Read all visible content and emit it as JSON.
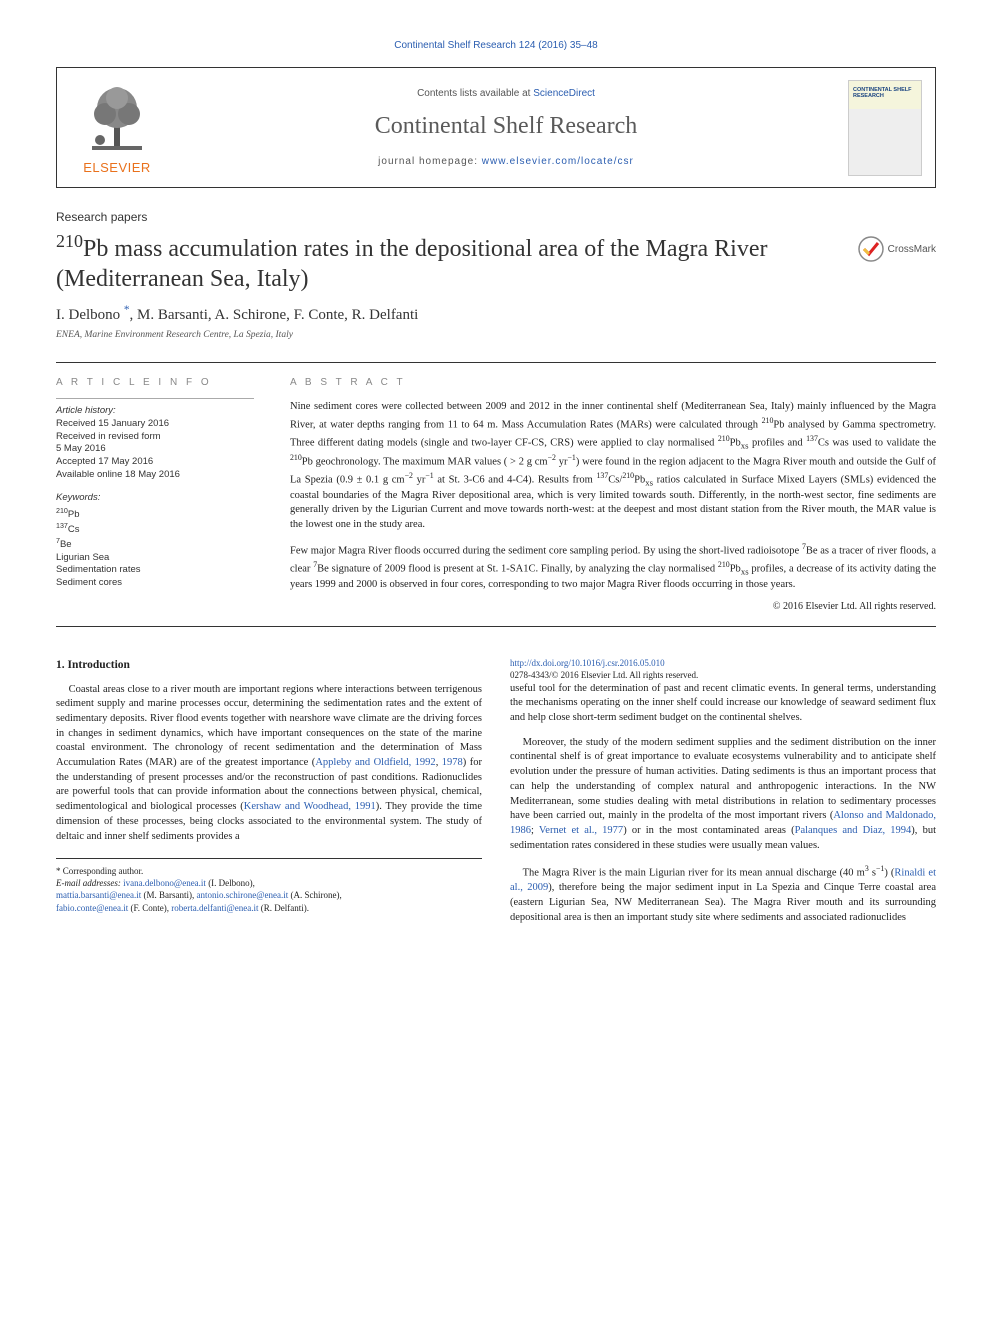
{
  "top_citation": "Continental Shelf Research 124 (2016) 35–48",
  "header": {
    "contents_pre": "Contents lists available at ",
    "contents_link": "ScienceDirect",
    "journal_title": "Continental Shelf Research",
    "homepage_pre": "journal homepage: ",
    "homepage_link": "www.elsevier.com/locate/csr",
    "elsevier": "ELSEVIER",
    "cover_title": "CONTINENTAL SHELF RESEARCH"
  },
  "crossmark_label": "CrossMark",
  "section_label": "Research papers",
  "article_title_html": "<sup>210</sup>Pb mass accumulation rates in the depositional area of the Magra River (Mediterranean Sea, Italy)",
  "authors_html": "I. Delbono <sup class=\"corr-mark\">*</sup>, M. Barsanti, A. Schirone, F. Conte, R. Delfanti",
  "affiliation": "ENEA, Marine Environment Research Centre, La Spezia, Italy",
  "article_info": {
    "head": "A R T I C L E  I N F O",
    "history_head": "Article history:",
    "history": [
      "Received 15 January 2016",
      "Received in revised form",
      "5 May 2016",
      "Accepted 17 May 2016",
      "Available online 18 May 2016"
    ],
    "kw_head": "Keywords:",
    "keywords_html": [
      "<sup>210</sup>Pb",
      "<sup>137</sup>Cs",
      "<sup>7</sup>Be",
      "Ligurian Sea",
      "Sedimentation rates",
      "Sediment cores"
    ]
  },
  "abstract": {
    "head": "A B S T R A C T",
    "p1_html": "Nine sediment cores were collected between 2009 and 2012 in the inner continental shelf (Mediterranean Sea, Italy) mainly influenced by the Magra River, at water depths ranging from 11 to 64 m. Mass Accumulation Rates (MARs) were calculated through <sup>210</sup>Pb analysed by Gamma spectrometry. Three different dating models (single and two-layer CF-CS, CRS) were applied to clay normalised <sup>210</sup>Pb<sub>xs</sub> profiles and <sup>137</sup>Cs was used to validate the <sup>210</sup>Pb geochronology. The maximum MAR values ( > 2 g cm<sup>−2</sup> yr<sup>−1</sup>) were found in the region adjacent to the Magra River mouth and outside the Gulf of La Spezia (0.9 ± 0.1 g cm<sup>−2</sup> yr<sup>−1</sup> at St. 3-C6 and 4-C4). Results from <sup>137</sup>Cs/<sup>210</sup>Pb<sub>xs</sub> ratios calculated in Surface Mixed Layers (SMLs) evidenced the coastal boundaries of the Magra River depositional area, which is very limited towards south. Differently, in the north-west sector, fine sediments are generally driven by the Ligurian Current and move towards north-west: at the deepest and most distant station from the River mouth, the MAR value is the lowest one in the study area.",
    "p2_html": "Few major Magra River floods occurred during the sediment core sampling period. By using the short-lived radioisotope <sup>7</sup>Be as a tracer of river floods, a clear <sup>7</sup>Be signature of 2009 flood is present at St. 1-SA1C. Finally, by analyzing the clay normalised <sup>210</sup>Pb<sub>xs</sub> profiles, a decrease of its activity dating the years 1999 and 2000 is observed in four cores, corresponding to two major Magra River floods occurring in those years.",
    "copyright": "© 2016 Elsevier Ltd. All rights reserved."
  },
  "body": {
    "intro_head": "1. Introduction",
    "p1_html": "Coastal areas close to a river mouth are important regions where interactions between terrigenous sediment supply and marine processes occur, determining the sedimentation rates and the extent of sedimentary deposits. River flood events together with nearshore wave climate are the driving forces in changes in sediment dynamics, which have important consequences on the state of the marine coastal environment. The chronology of recent sedimentation and the determination of Mass Accumulation Rates (MAR) are of the greatest importance (<a>Appleby and Oldfield, 1992</a>, <a>1978</a>) for the understanding of present processes and/or the reconstruction of past conditions. Radionuclides are powerful tools that can provide information about the connections between physical, chemical, sedimentological and biological processes (<a>Kershaw and Woodhead, 1991</a>). They provide the time dimension of these processes, being clocks associated to the environmental system. The study of deltaic and inner shelf sediments provides a",
    "p2_html": "useful tool for the determination of past and recent climatic events. In general terms, understanding the mechanisms operating on the inner shelf could increase our knowledge of seaward sediment flux and help close short-term sediment budget on the continental shelves.",
    "p3_html": "Moreover, the study of the modern sediment supplies and the sediment distribution on the inner continental shelf is of great importance to evaluate ecosystems vulnerability and to anticipate shelf evolution under the pressure of human activities. Dating sediments is thus an important process that can help the understanding of complex natural and anthropogenic interactions. In the NW Mediterranean, some studies dealing with metal distributions in relation to sedimentary processes have been carried out, mainly in the prodelta of the most important rivers (<a>Alonso and Maldonado, 1986</a>; <a>Vernet et al., 1977</a>) or in the most contaminated areas (<a>Palanques and Diaz, 1994</a>), but sedimentation rates considered in these studies were usually mean values.",
    "p4_html": "The Magra River is the main Ligurian river for its mean annual discharge (40 m<sup>3</sup> s<sup>−1</sup>) (<a>Rinaldi et al., 2009</a>), therefore being the major sediment input in La Spezia and Cinque Terre coastal area (eastern Ligurian Sea, NW Mediterranean Sea). The Magra River mouth and its surrounding depositional area is then an important study site where sediments and associated radionuclides"
  },
  "footnote": {
    "corr": "* Corresponding author.",
    "email_label": "E-mail addresses: ",
    "emails_html": "<a>ivana.delbono@enea.it</a> (I. Delbono),<br><a>mattia.barsanti@enea.it</a> (M. Barsanti), <a>antonio.schirone@enea.it</a> (A. Schirone),<br><a>fabio.conte@enea.it</a> (F. Conte), <a>roberta.delfanti@enea.it</a> (R. Delfanti)."
  },
  "doi": {
    "link": "http://dx.doi.org/10.1016/j.csr.2016.05.010",
    "issn_line": "0278-4343/© 2016 Elsevier Ltd. All rights reserved."
  }
}
